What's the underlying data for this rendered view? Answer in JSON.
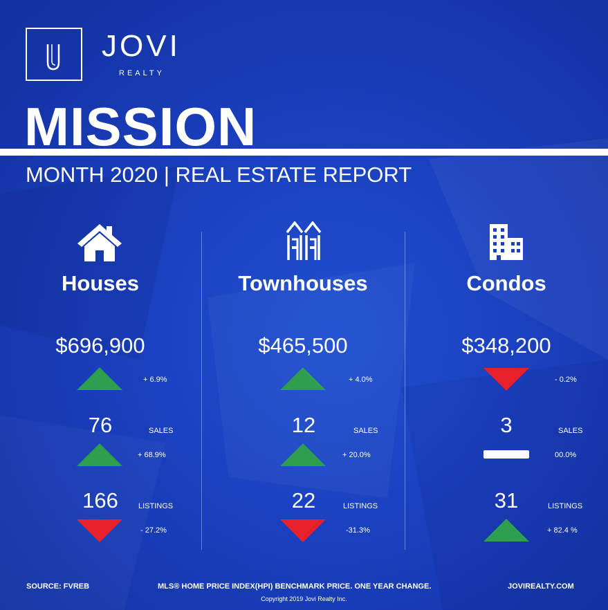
{
  "brand": {
    "name": "JOVI",
    "sub": "REALTY"
  },
  "title": "MISSION",
  "subtitle": "MONTH 2020 | REAL ESTATE REPORT",
  "columns": [
    {
      "name": "Houses",
      "price": "$696,900",
      "price_change": "+ 6.9%",
      "price_trend": "up",
      "sales": "76",
      "sales_label": "SALES",
      "sales_change": "+ 68.9%",
      "sales_trend": "up",
      "listings": "166",
      "listings_label": "LISTINGS",
      "listings_change": "- 27.2%",
      "listings_trend": "down"
    },
    {
      "name": "Townhouses",
      "price": "$465,500",
      "price_change": "+ 4.0%",
      "price_trend": "up",
      "sales": "12",
      "sales_label": "SALES",
      "sales_change": "+ 20.0%",
      "sales_trend": "up",
      "listings": "22",
      "listings_label": "LISTINGS",
      "listings_change": "-31.3%",
      "listings_trend": "down"
    },
    {
      "name": "Condos",
      "price": "$348,200",
      "price_change": "- 0.2%",
      "price_trend": "down",
      "sales": "3",
      "sales_label": "SALES",
      "sales_change": "00.0%",
      "sales_trend": "flat",
      "listings": "31",
      "listings_label": "LISTINGS",
      "listings_change": "+ 82.4 %",
      "listings_trend": "up"
    }
  ],
  "footer": {
    "source": "SOURCE:  FVREB",
    "note": "MLS® HOME PRICE INDEX(HPI) BENCHMARK PRICE. ONE YEAR CHANGE.",
    "website": "JOVIREALTY.COM",
    "copyright": "Copyright 2019 Jovi Realty Inc."
  },
  "colors": {
    "background": "#1a3fbd",
    "up": "#2e9e4f",
    "down": "#e8202a",
    "flat": "#ffffff"
  }
}
